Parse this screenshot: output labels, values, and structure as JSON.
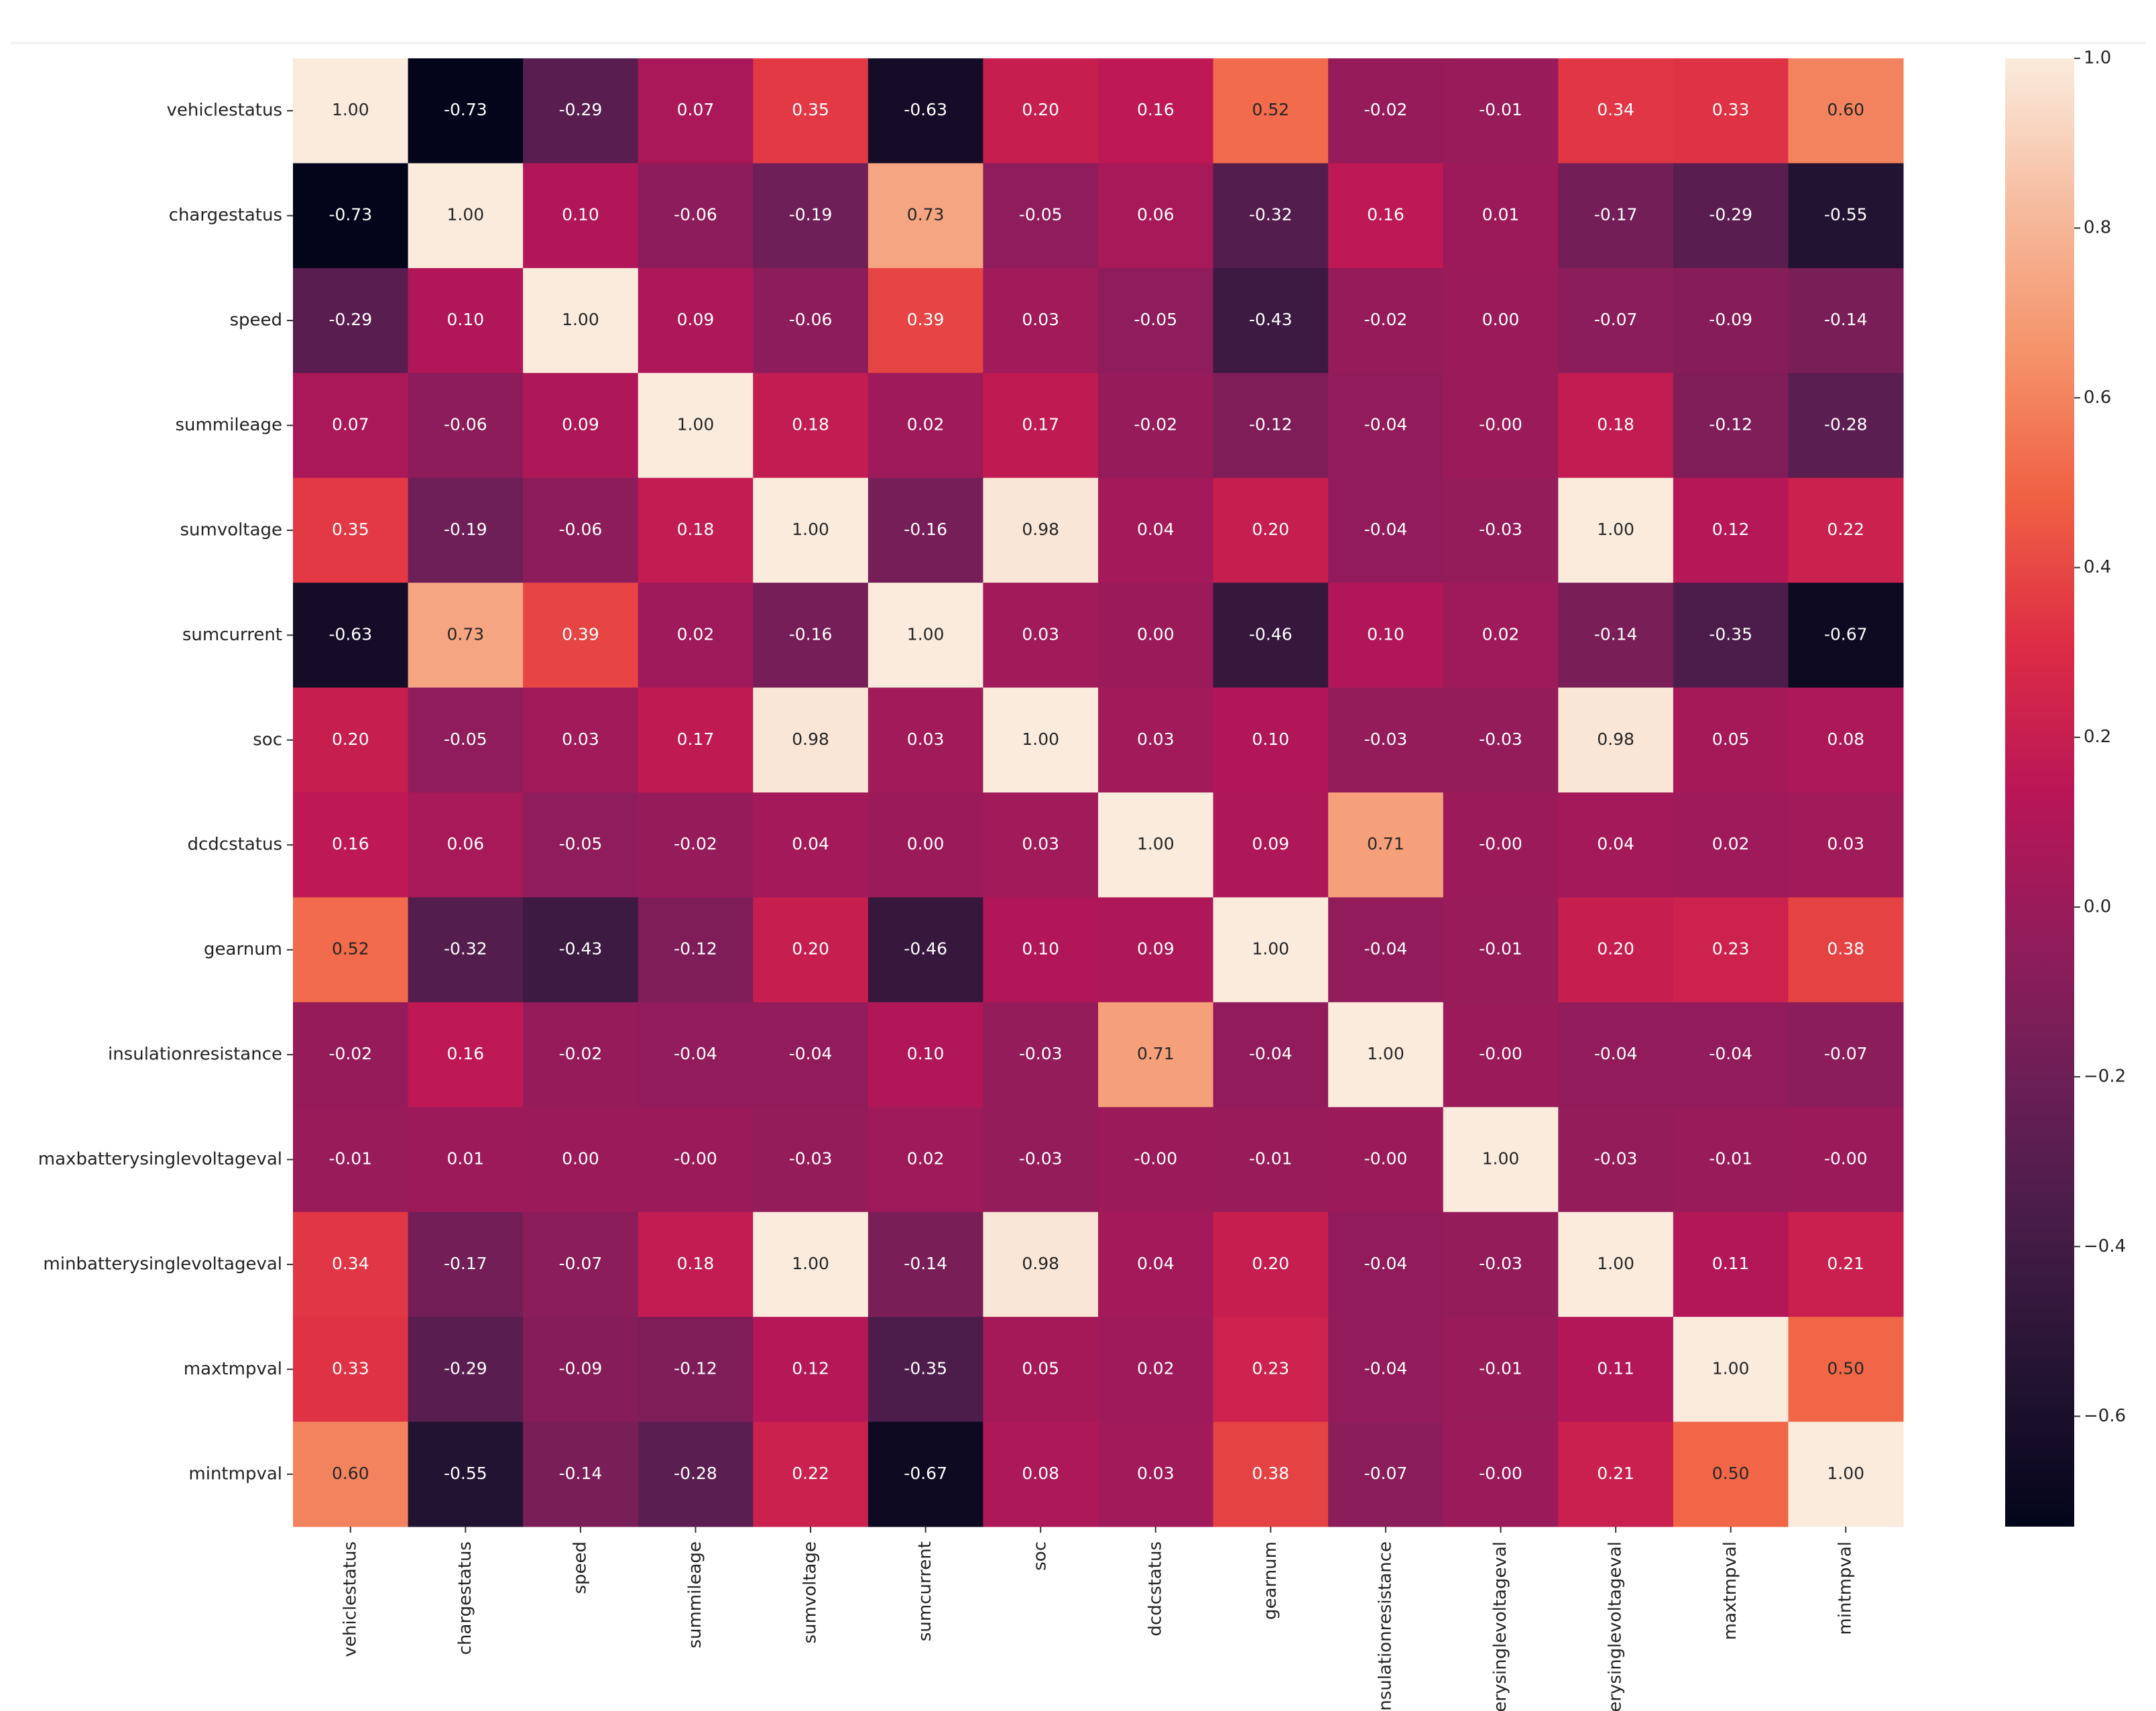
{
  "chart_data": {
    "type": "heatmap",
    "categories": [
      "vehiclestatus",
      "chargestatus",
      "speed",
      "summileage",
      "sumvoltage",
      "sumcurrent",
      "soc",
      "dcdcstatus",
      "gearnum",
      "insulationresistance",
      "maxbatterysinglevoltageval",
      "minbatterysinglevoltageval",
      "maxtmpval",
      "mintmpval"
    ],
    "values": [
      [
        1.0,
        -0.73,
        -0.29,
        0.07,
        0.35,
        -0.63,
        0.2,
        0.16,
        0.52,
        -0.02,
        -0.01,
        0.34,
        0.33,
        0.6
      ],
      [
        -0.73,
        1.0,
        0.1,
        -0.06,
        -0.19,
        0.73,
        -0.05,
        0.06,
        -0.32,
        0.16,
        0.01,
        -0.17,
        -0.29,
        -0.55
      ],
      [
        -0.29,
        0.1,
        1.0,
        0.09,
        -0.06,
        0.39,
        0.03,
        -0.05,
        -0.43,
        -0.02,
        0.0,
        -0.07,
        -0.09,
        -0.14
      ],
      [
        0.07,
        -0.06,
        0.09,
        1.0,
        0.18,
        0.02,
        0.17,
        -0.02,
        -0.12,
        -0.04,
        0,
        0.18,
        -0.12,
        -0.28
      ],
      [
        0.35,
        -0.19,
        -0.06,
        0.18,
        1.0,
        -0.16,
        0.98,
        0.04,
        0.2,
        -0.04,
        -0.03,
        1.0,
        0.12,
        0.22
      ],
      [
        -0.63,
        0.73,
        0.39,
        0.02,
        -0.16,
        1.0,
        0.03,
        0.0,
        -0.46,
        0.1,
        0.02,
        -0.14,
        -0.35,
        -0.67
      ],
      [
        0.2,
        -0.05,
        0.03,
        0.17,
        0.98,
        0.03,
        1.0,
        0.03,
        0.1,
        -0.03,
        -0.03,
        0.98,
        0.05,
        0.08
      ],
      [
        0.16,
        0.06,
        -0.05,
        -0.02,
        0.04,
        0.0,
        0.03,
        1.0,
        0.09,
        0.71,
        0,
        0.04,
        0.02,
        0.03
      ],
      [
        0.52,
        -0.32,
        -0.43,
        -0.12,
        0.2,
        -0.46,
        0.1,
        0.09,
        1.0,
        -0.04,
        -0.01,
        0.2,
        0.23,
        0.38
      ],
      [
        -0.02,
        0.16,
        -0.02,
        -0.04,
        -0.04,
        0.1,
        -0.03,
        0.71,
        -0.04,
        1.0,
        0,
        -0.04,
        -0.04,
        -0.07
      ],
      [
        -0.01,
        0.01,
        0.0,
        0,
        -0.03,
        0.02,
        -0.03,
        0,
        -0.01,
        0,
        1.0,
        -0.03,
        -0.01,
        0
      ],
      [
        0.34,
        -0.17,
        -0.07,
        0.18,
        1.0,
        -0.14,
        0.98,
        0.04,
        0.2,
        -0.04,
        -0.03,
        1.0,
        0.11,
        0.21
      ],
      [
        0.33,
        -0.29,
        -0.09,
        -0.12,
        0.12,
        -0.35,
        0.05,
        0.02,
        0.23,
        -0.04,
        -0.01,
        0.11,
        1.0,
        0.5
      ],
      [
        0.6,
        -0.55,
        -0.14,
        -0.28,
        0.22,
        -0.67,
        0.08,
        0.03,
        0.38,
        -0.07,
        0,
        0.21,
        0.5,
        1.0
      ]
    ],
    "value_labels": [
      [
        "1.00",
        "-0.73",
        "-0.29",
        "0.07",
        "0.35",
        "-0.63",
        "0.20",
        "0.16",
        "0.52",
        "-0.02",
        "-0.01",
        "0.34",
        "0.33",
        "0.60"
      ],
      [
        "-0.73",
        "1.00",
        "0.10",
        "-0.06",
        "-0.19",
        "0.73",
        "-0.05",
        "0.06",
        "-0.32",
        "0.16",
        "0.01",
        "-0.17",
        "-0.29",
        "-0.55"
      ],
      [
        "-0.29",
        "0.10",
        "1.00",
        "0.09",
        "-0.06",
        "0.39",
        "0.03",
        "-0.05",
        "-0.43",
        "-0.02",
        "0.00",
        "-0.07",
        "-0.09",
        "-0.14"
      ],
      [
        "0.07",
        "-0.06",
        "0.09",
        "1.00",
        "0.18",
        "0.02",
        "0.17",
        "-0.02",
        "-0.12",
        "-0.04",
        "-0.00",
        "0.18",
        "-0.12",
        "-0.28"
      ],
      [
        "0.35",
        "-0.19",
        "-0.06",
        "0.18",
        "1.00",
        "-0.16",
        "0.98",
        "0.04",
        "0.20",
        "-0.04",
        "-0.03",
        "1.00",
        "0.12",
        "0.22"
      ],
      [
        "-0.63",
        "0.73",
        "0.39",
        "0.02",
        "-0.16",
        "1.00",
        "0.03",
        "0.00",
        "-0.46",
        "0.10",
        "0.02",
        "-0.14",
        "-0.35",
        "-0.67"
      ],
      [
        "0.20",
        "-0.05",
        "0.03",
        "0.17",
        "0.98",
        "0.03",
        "1.00",
        "0.03",
        "0.10",
        "-0.03",
        "-0.03",
        "0.98",
        "0.05",
        "0.08"
      ],
      [
        "0.16",
        "0.06",
        "-0.05",
        "-0.02",
        "0.04",
        "0.00",
        "0.03",
        "1.00",
        "0.09",
        "0.71",
        "-0.00",
        "0.04",
        "0.02",
        "0.03"
      ],
      [
        "0.52",
        "-0.32",
        "-0.43",
        "-0.12",
        "0.20",
        "-0.46",
        "0.10",
        "0.09",
        "1.00",
        "-0.04",
        "-0.01",
        "0.20",
        "0.23",
        "0.38"
      ],
      [
        "-0.02",
        "0.16",
        "-0.02",
        "-0.04",
        "-0.04",
        "0.10",
        "-0.03",
        "0.71",
        "-0.04",
        "1.00",
        "-0.00",
        "-0.04",
        "-0.04",
        "-0.07"
      ],
      [
        "-0.01",
        "0.01",
        "0.00",
        "-0.00",
        "-0.03",
        "0.02",
        "-0.03",
        "-0.00",
        "-0.01",
        "-0.00",
        "1.00",
        "-0.03",
        "-0.01",
        "-0.00"
      ],
      [
        "0.34",
        "-0.17",
        "-0.07",
        "0.18",
        "1.00",
        "-0.14",
        "0.98",
        "0.04",
        "0.20",
        "-0.04",
        "-0.03",
        "1.00",
        "0.11",
        "0.21"
      ],
      [
        "0.33",
        "-0.29",
        "-0.09",
        "-0.12",
        "0.12",
        "-0.35",
        "0.05",
        "0.02",
        "0.23",
        "-0.04",
        "-0.01",
        "0.11",
        "1.00",
        "0.50"
      ],
      [
        "0.60",
        "-0.55",
        "-0.14",
        "-0.28",
        "0.22",
        "-0.67",
        "0.08",
        "0.03",
        "0.38",
        "-0.07",
        "-0.00",
        "0.21",
        "0.50",
        "1.00"
      ]
    ],
    "zlim": [
      -0.73,
      1.0
    ],
    "zticks": [
      {
        "value": -0.6,
        "label": "−0.6"
      },
      {
        "value": -0.4,
        "label": "−0.4"
      },
      {
        "value": -0.2,
        "label": "−0.2"
      },
      {
        "value": 0,
        "label": "0.0"
      },
      0.2,
      0.4,
      0.6,
      0.8,
      {
        "value": 1,
        "label": "1.0"
      }
    ],
    "colormap": [
      "#03051a",
      "#221331",
      "#451c47",
      "#6a1f56",
      "#921c5b",
      "#b91657",
      "#dd2c45",
      "#f06043",
      "#f5936a",
      "#f6bc9f",
      "#faebdd"
    ]
  }
}
